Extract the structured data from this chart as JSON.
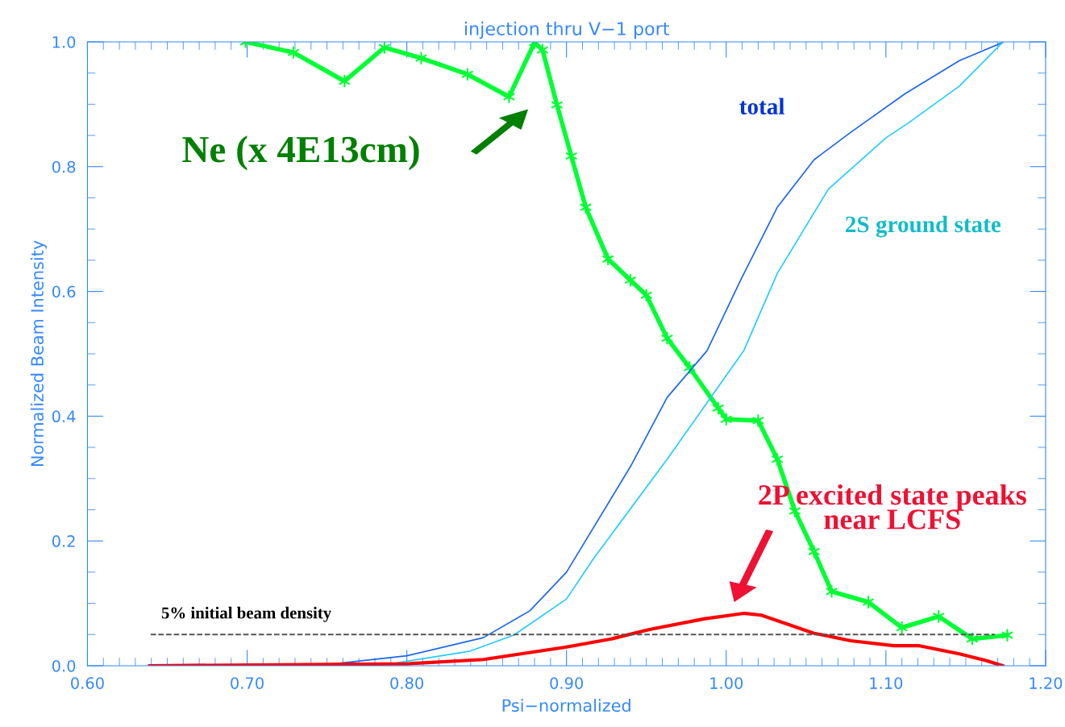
{
  "chart_data": {
    "type": "line",
    "title": "injection thru V−1 port",
    "xlabel": "Psi−normalized",
    "ylabel": "Normalized Beam Intensity",
    "xlim": [
      0.6,
      1.2
    ],
    "ylim": [
      0,
      1.0
    ],
    "xticks": [
      {
        "value": 0.6,
        "label": "0.60"
      },
      {
        "value": 0.7,
        "label": "0.70"
      },
      {
        "value": 0.8,
        "label": "0.80"
      },
      {
        "value": 0.9,
        "label": "0.90"
      },
      {
        "value": 1.0,
        "label": "1.00"
      },
      {
        "value": 1.1,
        "label": "1.10"
      },
      {
        "value": 1.2,
        "label": "1.20"
      }
    ],
    "yticks": [
      {
        "value": 0,
        "label": "0.0"
      },
      {
        "value": 0.2,
        "label": "0.2"
      },
      {
        "value": 0.4,
        "label": "0.4"
      },
      {
        "value": 0.6,
        "label": "0.6"
      },
      {
        "value": 0.8,
        "label": "0.8"
      },
      {
        "value": 1.0,
        "label": "1.0"
      }
    ],
    "grid": false,
    "legend": false,
    "series": [
      {
        "color": "#00ff33",
        "marker": "cross",
        "x": [
          0.699,
          0.729,
          0.761,
          0.786,
          0.809,
          0.838,
          0.864,
          0.88,
          0.885,
          0.894,
          0.903,
          0.912,
          0.926,
          0.94,
          0.95,
          0.963,
          0.977,
          0.995,
          1.0,
          1.02,
          1.032,
          1.043,
          1.055,
          1.066,
          1.089,
          1.11,
          1.133,
          1.154,
          1.176
        ],
        "values": [
          1.0,
          0.983,
          0.937,
          0.991,
          0.974,
          0.948,
          0.912,
          0.999,
          0.987,
          0.899,
          0.817,
          0.735,
          0.652,
          0.618,
          0.594,
          0.525,
          0.478,
          0.413,
          0.395,
          0.393,
          0.331,
          0.248,
          0.183,
          0.119,
          0.102,
          0.061,
          0.079,
          0.043,
          0.049
        ]
      },
      {
        "color": "#1a66ee",
        "x": [
          0.639,
          0.751,
          0.8,
          0.848,
          0.877,
          0.9,
          0.94,
          0.963,
          0.988,
          1.009,
          1.032,
          1.055,
          1.078,
          1.112,
          1.146,
          1.173
        ],
        "values": [
          0.0,
          0.002,
          0.016,
          0.045,
          0.088,
          0.15,
          0.319,
          0.43,
          0.505,
          0.618,
          0.735,
          0.811,
          0.855,
          0.917,
          0.97,
          0.999
        ]
      },
      {
        "color": "#22ccff",
        "x": [
          0.639,
          0.79,
          0.839,
          0.867,
          0.9,
          0.917,
          0.963,
          1.011,
          1.032,
          1.064,
          1.1,
          1.114,
          1.146,
          1.173
        ],
        "values": [
          0.0,
          0.003,
          0.023,
          0.049,
          0.107,
          0.172,
          0.331,
          0.505,
          0.629,
          0.764,
          0.846,
          0.87,
          0.929,
          0.999
        ]
      },
      {
        "color": "#ff0000",
        "x": [
          0.639,
          0.8,
          0.848,
          0.9,
          0.928,
          0.952,
          0.986,
          1.011,
          1.022,
          1.055,
          1.078,
          1.105,
          1.121,
          1.146,
          1.163,
          1.173
        ],
        "values": [
          0.0,
          0.003,
          0.01,
          0.03,
          0.043,
          0.058,
          0.075,
          0.084,
          0.081,
          0.052,
          0.04,
          0.032,
          0.032,
          0.019,
          0.008,
          0.0
        ]
      }
    ],
    "ref_lines": [
      {
        "axis": "y",
        "value": 0.05,
        "label": "5% initial beam density",
        "color": "#555555",
        "line_style": "dashed"
      }
    ],
    "annotations": [
      "Ne (x 4E13cm)",
      "2P excited state peaks\nnear LCFS",
      "total",
      "2S ground state"
    ]
  }
}
